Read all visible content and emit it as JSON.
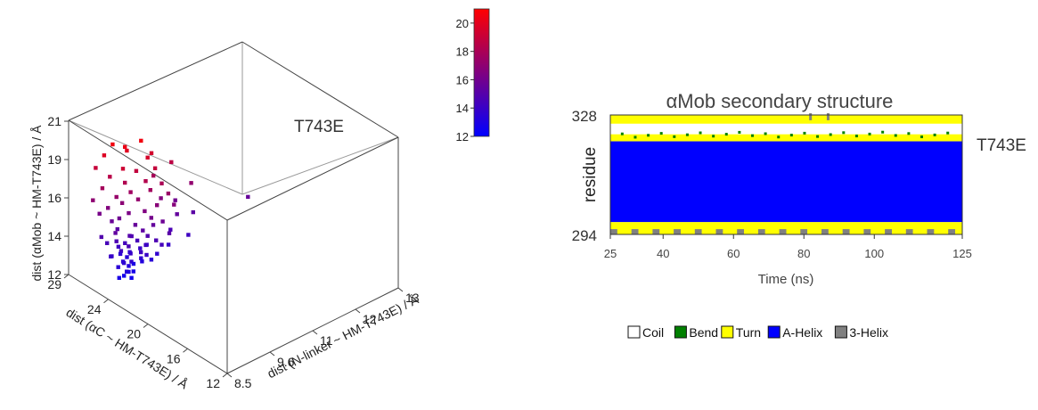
{
  "chart_data": [
    {
      "type": "scatter",
      "subtype": "scatter3d",
      "annotation": "T743E",
      "xlabel": "dist (N-linker ~ HM-T743E) / Å",
      "ylabel": "dist (αC ~ HM-T743E) / Å",
      "zlabel": "dist (αMob ~ HM-T743E) / Å",
      "x_ticks": [
        "8.5",
        "9.6",
        "11",
        "12",
        "13"
      ],
      "y_ticks": [
        "12",
        "16",
        "20",
        "24",
        "29"
      ],
      "z_ticks": [
        "12",
        "14",
        "16",
        "19",
        "21"
      ],
      "xlim": [
        8.5,
        13
      ],
      "ylim": [
        12,
        29
      ],
      "zlim": [
        12,
        21
      ],
      "colorbar": {
        "min": 12,
        "max": 21,
        "ticks": [
          "20",
          "18",
          "16",
          "14",
          "12"
        ],
        "low_color": "#0000ff",
        "high_color": "#ff0000"
      },
      "points": [
        [
          8.8,
          25.5,
          20.5
        ],
        [
          9.0,
          25.0,
          20.3
        ],
        [
          9.3,
          24.5,
          20.5
        ],
        [
          8.7,
          26.0,
          19.8
        ],
        [
          9.1,
          25.2,
          19.9
        ],
        [
          8.9,
          24.8,
          19.2
        ],
        [
          9.4,
          24.2,
          19.5
        ],
        [
          8.6,
          26.5,
          19.0
        ],
        [
          9.2,
          24.6,
          18.8
        ],
        [
          9.5,
          23.8,
          18.9
        ],
        [
          8.8,
          25.8,
          18.5
        ],
        [
          9.0,
          25.0,
          18.2
        ],
        [
          9.3,
          24.0,
          18.3
        ],
        [
          9.6,
          23.5,
          18.0
        ],
        [
          8.7,
          26.2,
          17.8
        ],
        [
          9.1,
          24.8,
          17.6
        ],
        [
          9.4,
          23.9,
          17.7
        ],
        [
          8.9,
          25.5,
          17.3
        ],
        [
          9.2,
          24.4,
          17.2
        ],
        [
          9.7,
          23.2,
          17.4
        ],
        [
          8.6,
          26.8,
          17.0
        ],
        [
          9.0,
          25.3,
          16.9
        ],
        [
          9.5,
          23.6,
          16.8
        ],
        [
          8.8,
          26.0,
          16.6
        ],
        [
          9.3,
          24.1,
          16.5
        ],
        [
          9.8,
          23.0,
          16.7
        ],
        [
          9.1,
          25.0,
          16.3
        ],
        [
          8.7,
          26.5,
          16.2
        ],
        [
          9.4,
          23.8,
          16.1
        ],
        [
          9.0,
          25.6,
          15.9
        ],
        [
          9.6,
          23.4,
          15.8
        ],
        [
          8.9,
          26.0,
          15.7
        ],
        [
          9.2,
          24.7,
          15.6
        ],
        [
          9.5,
          24.0,
          15.5
        ],
        [
          8.8,
          25.2,
          15.4
        ],
        [
          9.3,
          24.3,
          15.3
        ],
        [
          9.0,
          25.8,
          15.2
        ],
        [
          9.7,
          23.1,
          15.1
        ],
        [
          9.1,
          24.9,
          15.0
        ],
        [
          8.7,
          26.3,
          14.9
        ],
        [
          9.4,
          24.2,
          14.9
        ],
        [
          9.2,
          25.1,
          14.8
        ],
        [
          8.9,
          25.5,
          14.7
        ],
        [
          9.5,
          23.7,
          14.7
        ],
        [
          9.0,
          24.6,
          14.6
        ],
        [
          9.3,
          24.9,
          14.5
        ],
        [
          8.8,
          26.1,
          14.5
        ],
        [
          9.6,
          23.5,
          14.4
        ],
        [
          9.1,
          25.4,
          14.4
        ],
        [
          9.4,
          24.4,
          14.3
        ],
        [
          8.9,
          25.0,
          14.3
        ],
        [
          9.2,
          24.1,
          14.2
        ],
        [
          9.0,
          25.7,
          14.2
        ],
        [
          9.5,
          24.7,
          14.1
        ],
        [
          8.7,
          25.3,
          14.1
        ],
        [
          9.3,
          23.9,
          14.0
        ],
        [
          9.1,
          24.8,
          14.0
        ],
        [
          8.8,
          25.6,
          13.9
        ],
        [
          9.4,
          25.0,
          13.9
        ],
        [
          9.0,
          24.3,
          13.8
        ],
        [
          9.2,
          25.3,
          13.8
        ],
        [
          8.9,
          24.7,
          13.7
        ],
        [
          9.6,
          24.0,
          13.7
        ],
        [
          9.1,
          25.9,
          13.6
        ],
        [
          9.3,
          24.5,
          13.6
        ],
        [
          8.8,
          24.9,
          13.5
        ],
        [
          9.0,
          25.2,
          13.5
        ],
        [
          9.5,
          24.2,
          13.4
        ],
        [
          9.2,
          25.6,
          13.4
        ],
        [
          8.9,
          24.4,
          13.3
        ],
        [
          9.4,
          24.8,
          13.2
        ],
        [
          9.1,
          25.0,
          13.2
        ],
        [
          9.0,
          24.6,
          13.1
        ],
        [
          9.3,
          25.3,
          13.0
        ],
        [
          8.8,
          24.8,
          12.9
        ],
        [
          9.2,
          24.9,
          12.8
        ],
        [
          9.0,
          25.1,
          12.7
        ],
        [
          9.1,
          24.7,
          12.6
        ],
        [
          11.5,
          22.0,
          15.6
        ],
        [
          10.2,
          24.5,
          16.0
        ],
        [
          10.5,
          23.8,
          15.2
        ],
        [
          10.0,
          24.2,
          14.6
        ],
        [
          10.3,
          23.5,
          14.2
        ],
        [
          9.9,
          24.0,
          13.9
        ],
        [
          10.1,
          23.9,
          15.5
        ],
        [
          9.8,
          24.4,
          16.6
        ],
        [
          10.4,
          23.6,
          17.1
        ],
        [
          9.7,
          24.8,
          17.9
        ],
        [
          10.0,
          24.1,
          18.6
        ],
        [
          9.6,
          24.6,
          19.4
        ]
      ]
    },
    {
      "type": "heatmap",
      "subtype": "secondary-structure",
      "title": "αMob secondary structure",
      "annotation": "T743E",
      "xlabel": "Time (ns)",
      "ylabel": "residue",
      "xlim": [
        25,
        125
      ],
      "ylim": [
        294,
        328
      ],
      "x_ticks": [
        "25",
        "40",
        "60",
        "80",
        "100",
        "125"
      ],
      "y_ticks": [
        "328",
        "294"
      ],
      "legend": [
        {
          "label": "Coil",
          "color": "#ffffff"
        },
        {
          "label": "Bend",
          "color": "#008000"
        },
        {
          "label": "Turn",
          "color": "#ffff00"
        },
        {
          "label": "A-Helix",
          "color": "#0000ff"
        },
        {
          "label": "3-Helix",
          "color": "#808080"
        }
      ],
      "residue_segments": [
        {
          "from": 326,
          "to": 328,
          "state": "Turn"
        },
        {
          "from": 323,
          "to": 325,
          "state": "Coil"
        },
        {
          "from": 321,
          "to": 322,
          "state": "Turn"
        },
        {
          "from": 298,
          "to": 320,
          "state": "A-Helix"
        },
        {
          "from": 296,
          "to": 297,
          "state": "Turn"
        },
        {
          "from": 294,
          "to": 295,
          "state": "Mixed Turn/3-Helix"
        }
      ]
    }
  ]
}
